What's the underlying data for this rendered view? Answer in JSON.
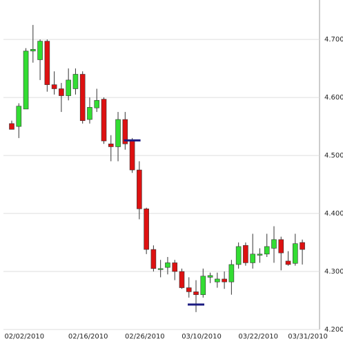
{
  "chart_data": {
    "type": "candlestick",
    "categories": [
      null,
      "02/02/2010",
      null,
      null,
      null,
      null,
      null,
      null,
      null,
      null,
      "02/16/2010",
      null,
      null,
      null,
      null,
      null,
      null,
      null,
      "02/26/2010",
      null,
      null,
      null,
      null,
      null,
      null,
      null,
      "03/10/2010",
      null,
      null,
      null,
      null,
      null,
      null,
      null,
      "03/22/2010",
      null,
      null,
      null,
      null,
      null,
      null,
      "03/31/2010"
    ],
    "open": [
      4.555,
      4.55,
      4.58,
      4.68,
      4.665,
      4.697,
      4.622,
      4.615,
      4.603,
      4.615,
      4.64,
      4.562,
      4.582,
      4.597,
      4.52,
      4.515,
      4.562,
      4.525,
      4.475,
      4.408,
      4.338,
      4.305,
      4.307,
      4.315,
      4.3,
      4.272,
      4.265,
      4.26,
      4.29,
      4.282,
      4.287,
      4.282,
      4.312,
      4.345,
      4.315,
      4.328,
      4.33,
      4.34,
      4.355,
      4.318,
      4.314,
      4.35
    ],
    "high": [
      4.56,
      4.59,
      4.685,
      4.725,
      4.7,
      4.7,
      4.645,
      4.625,
      4.65,
      4.65,
      4.645,
      4.6,
      4.615,
      4.6,
      4.535,
      4.575,
      4.575,
      4.53,
      4.49,
      4.41,
      4.345,
      4.32,
      4.325,
      4.32,
      4.305,
      4.29,
      4.285,
      4.305,
      4.298,
      4.298,
      4.3,
      4.32,
      4.35,
      4.35,
      4.365,
      4.34,
      4.365,
      4.378,
      4.36,
      4.335,
      4.365,
      4.355
    ],
    "low": [
      4.545,
      4.53,
      4.58,
      4.66,
      4.63,
      4.61,
      4.605,
      4.575,
      4.595,
      4.605,
      4.555,
      4.555,
      4.575,
      4.52,
      4.49,
      4.49,
      4.51,
      4.47,
      4.39,
      4.33,
      4.3,
      4.29,
      4.295,
      4.285,
      4.27,
      4.255,
      4.23,
      4.255,
      4.28,
      4.272,
      4.27,
      4.26,
      4.305,
      4.31,
      4.305,
      4.315,
      4.325,
      4.315,
      4.302,
      4.31,
      4.31,
      4.312
    ],
    "close": [
      4.545,
      4.585,
      4.68,
      4.683,
      4.697,
      4.622,
      4.615,
      4.603,
      4.63,
      4.64,
      4.56,
      4.583,
      4.595,
      4.525,
      4.515,
      4.562,
      4.52,
      4.475,
      4.408,
      4.338,
      4.305,
      4.305,
      4.315,
      4.3,
      4.272,
      4.265,
      4.26,
      4.292,
      4.293,
      4.287,
      4.282,
      4.312,
      4.343,
      4.315,
      4.33,
      4.33,
      4.343,
      4.355,
      4.332,
      4.312,
      4.348,
      4.338
    ],
    "up_color": "#33dd33",
    "down_color": "#dd1111",
    "markers": [
      {
        "index": 17,
        "value": 4.526,
        "color": "#1a1a80"
      },
      {
        "index": 26,
        "value": 4.243,
        "color": "#1a1a80"
      }
    ],
    "ylim": [
      4.2,
      4.768
    ],
    "yticks": [
      {
        "value": 4.2,
        "label": "4.2000"
      },
      {
        "value": 4.3,
        "label": "4.3000"
      },
      {
        "value": 4.4,
        "label": "4.4000"
      },
      {
        "value": 4.5,
        "label": "4.5000"
      },
      {
        "value": 4.6,
        "label": "4.6000"
      },
      {
        "value": 4.7,
        "label": "4.7000"
      }
    ],
    "grid": true
  }
}
